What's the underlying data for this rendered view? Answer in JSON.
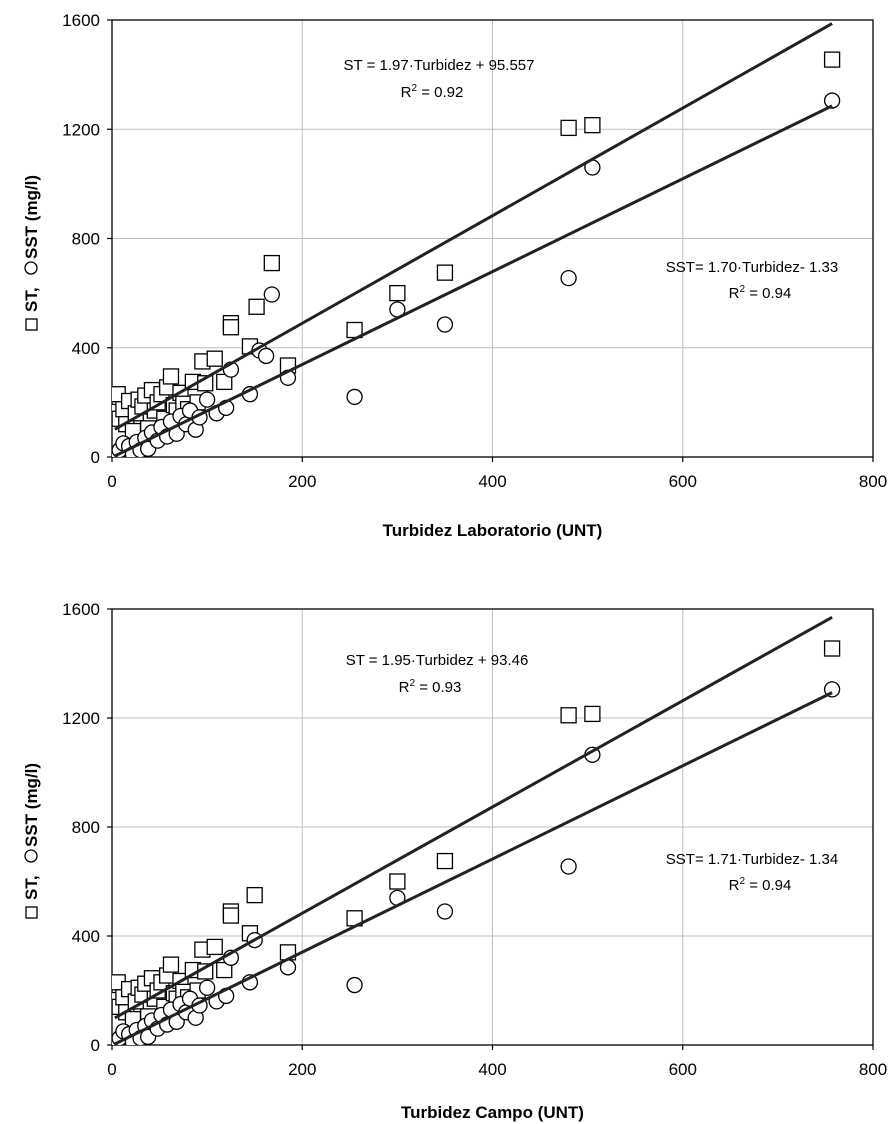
{
  "chart_data": [
    {
      "type": "scatter",
      "xlabel": "Turbidez Laboratorio (UNT)",
      "ylabel_st": "ST,",
      "ylabel_sst": "SST (mg/l)",
      "xlim": [
        0,
        800
      ],
      "ylim": [
        0,
        1600
      ],
      "xticks": [
        "0",
        "200",
        "400",
        "600",
        "800"
      ],
      "yticks": [
        "0",
        "400",
        "800",
        "1200",
        "1600"
      ],
      "grid": true,
      "series": [
        {
          "name": "ST",
          "marker": "square",
          "points": [
            [
              3,
              165
            ],
            [
              6,
              230
            ],
            [
              8,
              140
            ],
            [
              12,
              175
            ],
            [
              15,
              120
            ],
            [
              18,
              205
            ],
            [
              22,
              95
            ],
            [
              25,
              160
            ],
            [
              28,
              210
            ],
            [
              32,
              185
            ],
            [
              35,
              225
            ],
            [
              38,
              105
            ],
            [
              42,
              245
            ],
            [
              45,
              170
            ],
            [
              48,
              200
            ],
            [
              52,
              230
            ],
            [
              55,
              140
            ],
            [
              58,
              255
            ],
            [
              62,
              295
            ],
            [
              65,
              190
            ],
            [
              68,
              170
            ],
            [
              72,
              235
            ],
            [
              75,
              195
            ],
            [
              80,
              175
            ],
            [
              85,
              275
            ],
            [
              90,
              200
            ],
            [
              95,
              350
            ],
            [
              98,
              270
            ],
            [
              108,
              360
            ],
            [
              118,
              275
            ],
            [
              125,
              490
            ],
            [
              125,
              475
            ],
            [
              145,
              405
            ],
            [
              152,
              550
            ],
            [
              168,
              710
            ],
            [
              185,
              335
            ],
            [
              255,
              465
            ],
            [
              300,
              600
            ],
            [
              350,
              675
            ],
            [
              480,
              1205
            ],
            [
              505,
              1215
            ],
            [
              757,
              1455
            ]
          ],
          "fit": {
            "slope": 1.97,
            "intercept": 95.557
          }
        },
        {
          "name": "SST",
          "marker": "circle",
          "points": [
            [
              3,
              5
            ],
            [
              8,
              25
            ],
            [
              12,
              50
            ],
            [
              18,
              40
            ],
            [
              22,
              10
            ],
            [
              26,
              55
            ],
            [
              30,
              25
            ],
            [
              35,
              70
            ],
            [
              38,
              30
            ],
            [
              42,
              90
            ],
            [
              48,
              60
            ],
            [
              52,
              110
            ],
            [
              58,
              75
            ],
            [
              62,
              130
            ],
            [
              68,
              85
            ],
            [
              72,
              150
            ],
            [
              78,
              120
            ],
            [
              82,
              170
            ],
            [
              88,
              100
            ],
            [
              92,
              145
            ],
            [
              100,
              210
            ],
            [
              110,
              160
            ],
            [
              120,
              180
            ],
            [
              125,
              320
            ],
            [
              145,
              230
            ],
            [
              155,
              390
            ],
            [
              162,
              370
            ],
            [
              168,
              595
            ],
            [
              185,
              290
            ],
            [
              255,
              220
            ],
            [
              300,
              540
            ],
            [
              350,
              485
            ],
            [
              480,
              655
            ],
            [
              505,
              1060
            ],
            [
              757,
              1305
            ]
          ],
          "fit": {
            "slope": 1.7,
            "intercept": -1.33
          }
        }
      ],
      "annotations": {
        "st_eq": "ST = 1.97·Turbidez + 95.557",
        "st_r2": "0.92",
        "sst_eq": "SST= 1.70·Turbidez- 1.33",
        "sst_r2": "0.94"
      }
    },
    {
      "type": "scatter",
      "xlabel": "Turbidez Campo (UNT)",
      "ylabel_st": "ST,",
      "ylabel_sst": "SST (mg/l)",
      "xlim": [
        0,
        800
      ],
      "ylim": [
        0,
        1600
      ],
      "xticks": [
        "0",
        "200",
        "400",
        "600",
        "800"
      ],
      "yticks": [
        "0",
        "400",
        "800",
        "1200",
        "1600"
      ],
      "grid": true,
      "series": [
        {
          "name": "ST",
          "marker": "square",
          "points": [
            [
              3,
              165
            ],
            [
              6,
              230
            ],
            [
              8,
              140
            ],
            [
              12,
              175
            ],
            [
              15,
              120
            ],
            [
              18,
              205
            ],
            [
              22,
              95
            ],
            [
              25,
              160
            ],
            [
              28,
              210
            ],
            [
              32,
              185
            ],
            [
              35,
              225
            ],
            [
              38,
              105
            ],
            [
              42,
              245
            ],
            [
              45,
              170
            ],
            [
              48,
              200
            ],
            [
              52,
              230
            ],
            [
              55,
              140
            ],
            [
              58,
              255
            ],
            [
              62,
              295
            ],
            [
              65,
              190
            ],
            [
              68,
              170
            ],
            [
              72,
              235
            ],
            [
              75,
              195
            ],
            [
              80,
              175
            ],
            [
              85,
              275
            ],
            [
              90,
              200
            ],
            [
              95,
              350
            ],
            [
              98,
              270
            ],
            [
              108,
              360
            ],
            [
              118,
              275
            ],
            [
              125,
              490
            ],
            [
              125,
              475
            ],
            [
              145,
              410
            ],
            [
              150,
              550
            ],
            [
              185,
              340
            ],
            [
              255,
              465
            ],
            [
              300,
              600
            ],
            [
              350,
              675
            ],
            [
              480,
              1210
            ],
            [
              505,
              1215
            ],
            [
              757,
              1455
            ]
          ],
          "fit": {
            "slope": 1.95,
            "intercept": 93.46
          }
        },
        {
          "name": "SST",
          "marker": "circle",
          "points": [
            [
              3,
              5
            ],
            [
              8,
              25
            ],
            [
              12,
              50
            ],
            [
              18,
              40
            ],
            [
              22,
              10
            ],
            [
              26,
              55
            ],
            [
              30,
              25
            ],
            [
              35,
              70
            ],
            [
              38,
              30
            ],
            [
              42,
              90
            ],
            [
              48,
              60
            ],
            [
              52,
              110
            ],
            [
              58,
              75
            ],
            [
              62,
              130
            ],
            [
              68,
              85
            ],
            [
              72,
              150
            ],
            [
              78,
              120
            ],
            [
              82,
              170
            ],
            [
              88,
              100
            ],
            [
              92,
              145
            ],
            [
              100,
              210
            ],
            [
              110,
              160
            ],
            [
              120,
              180
            ],
            [
              125,
              320
            ],
            [
              145,
              230
            ],
            [
              150,
              385
            ],
            [
              185,
              285
            ],
            [
              255,
              220
            ],
            [
              300,
              540
            ],
            [
              350,
              490
            ],
            [
              480,
              655
            ],
            [
              505,
              1065
            ],
            [
              757,
              1305
            ]
          ],
          "fit": {
            "slope": 1.71,
            "intercept": -1.34
          }
        }
      ],
      "annotations": {
        "st_eq": "ST = 1.95·Turbidez + 93.46",
        "st_r2": "0.93",
        "sst_eq": "SST= 1.71·Turbidez- 1.34",
        "sst_r2": "0.94"
      }
    }
  ]
}
